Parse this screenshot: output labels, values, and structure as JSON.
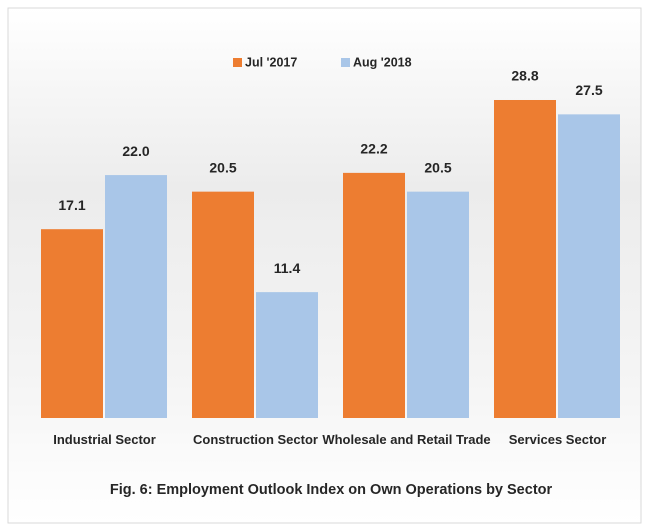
{
  "chart_data": {
    "type": "bar",
    "title": "Fig. 6: Employment Outlook  Index on Own Operations by Sector",
    "categories": [
      "Industrial Sector",
      "Construction Sector",
      "Wholesale and Retail Trade",
      "Services Sector"
    ],
    "series": [
      {
        "name": "Jul '2017",
        "color": "#ED7D31",
        "values": [
          17.1,
          20.5,
          22.2,
          28.8
        ],
        "value_labels": [
          "17.1",
          "20.5",
          "22.2",
          "28.8"
        ]
      },
      {
        "name": "Aug '2018",
        "color": "#A9C6E8",
        "values": [
          22.0,
          11.4,
          20.5,
          27.5
        ],
        "value_labels": [
          "22.0",
          "11.4",
          "20.5",
          "27.5"
        ]
      }
    ],
    "legend": "top"
  }
}
